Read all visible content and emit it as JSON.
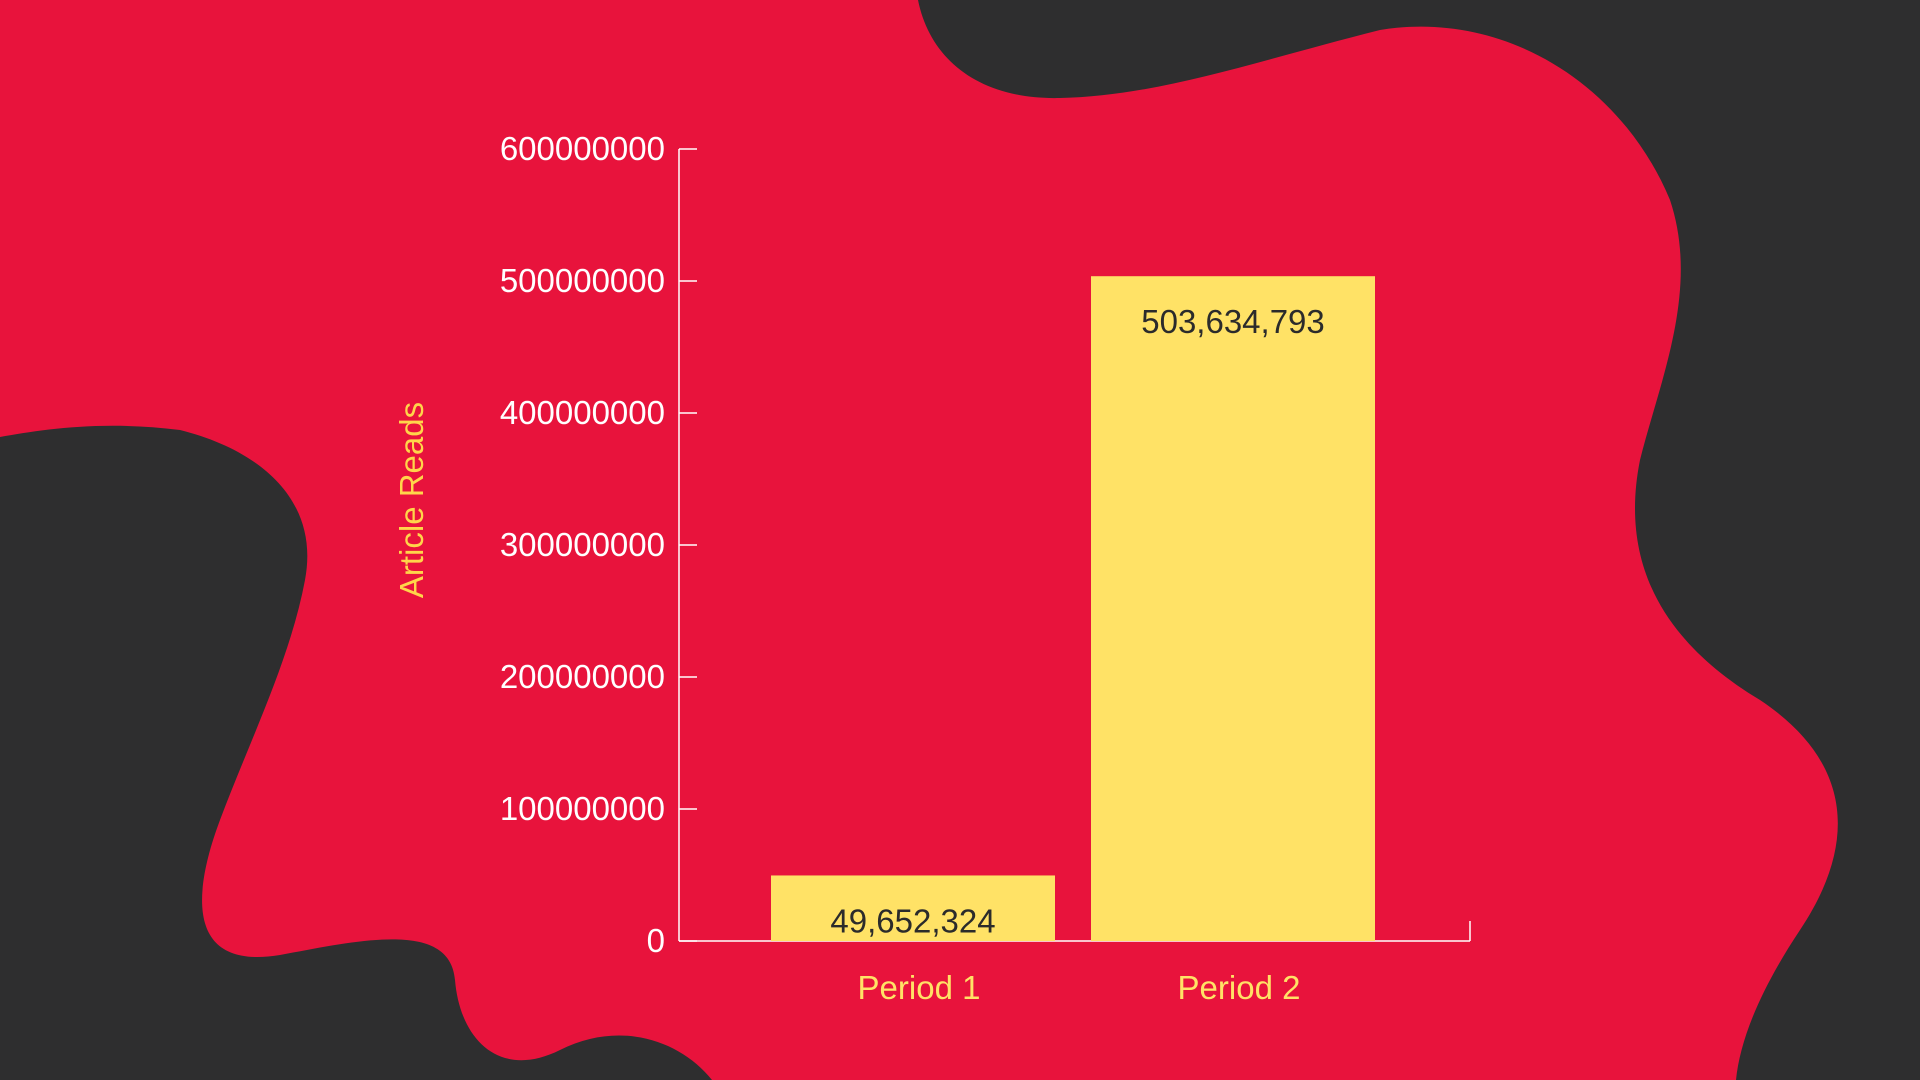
{
  "colors": {
    "background_dark": "#2e2e2f",
    "blob_red": "#e8133c",
    "bar_yellow": "#ffe266",
    "axis_white": "#ffffff",
    "label_yellow": "#ffe266",
    "data_label_text": "#2b2b2b"
  },
  "chart_data": {
    "type": "bar",
    "title": "",
    "xlabel": "",
    "ylabel": "Article Reads",
    "categories": [
      "Period 1",
      "Period 2"
    ],
    "values": [
      49652324,
      503634793
    ],
    "data_labels": [
      "49,652,324",
      "503,634,793"
    ],
    "ylim": [
      0,
      600000000
    ],
    "yticks": [
      0,
      100000000,
      200000000,
      300000000,
      400000000,
      500000000,
      600000000
    ],
    "ytick_labels": [
      "0",
      "100000000",
      "200000000",
      "300000000",
      "400000000",
      "500000000",
      "600000000"
    ],
    "grid": false,
    "legend": "none"
  }
}
